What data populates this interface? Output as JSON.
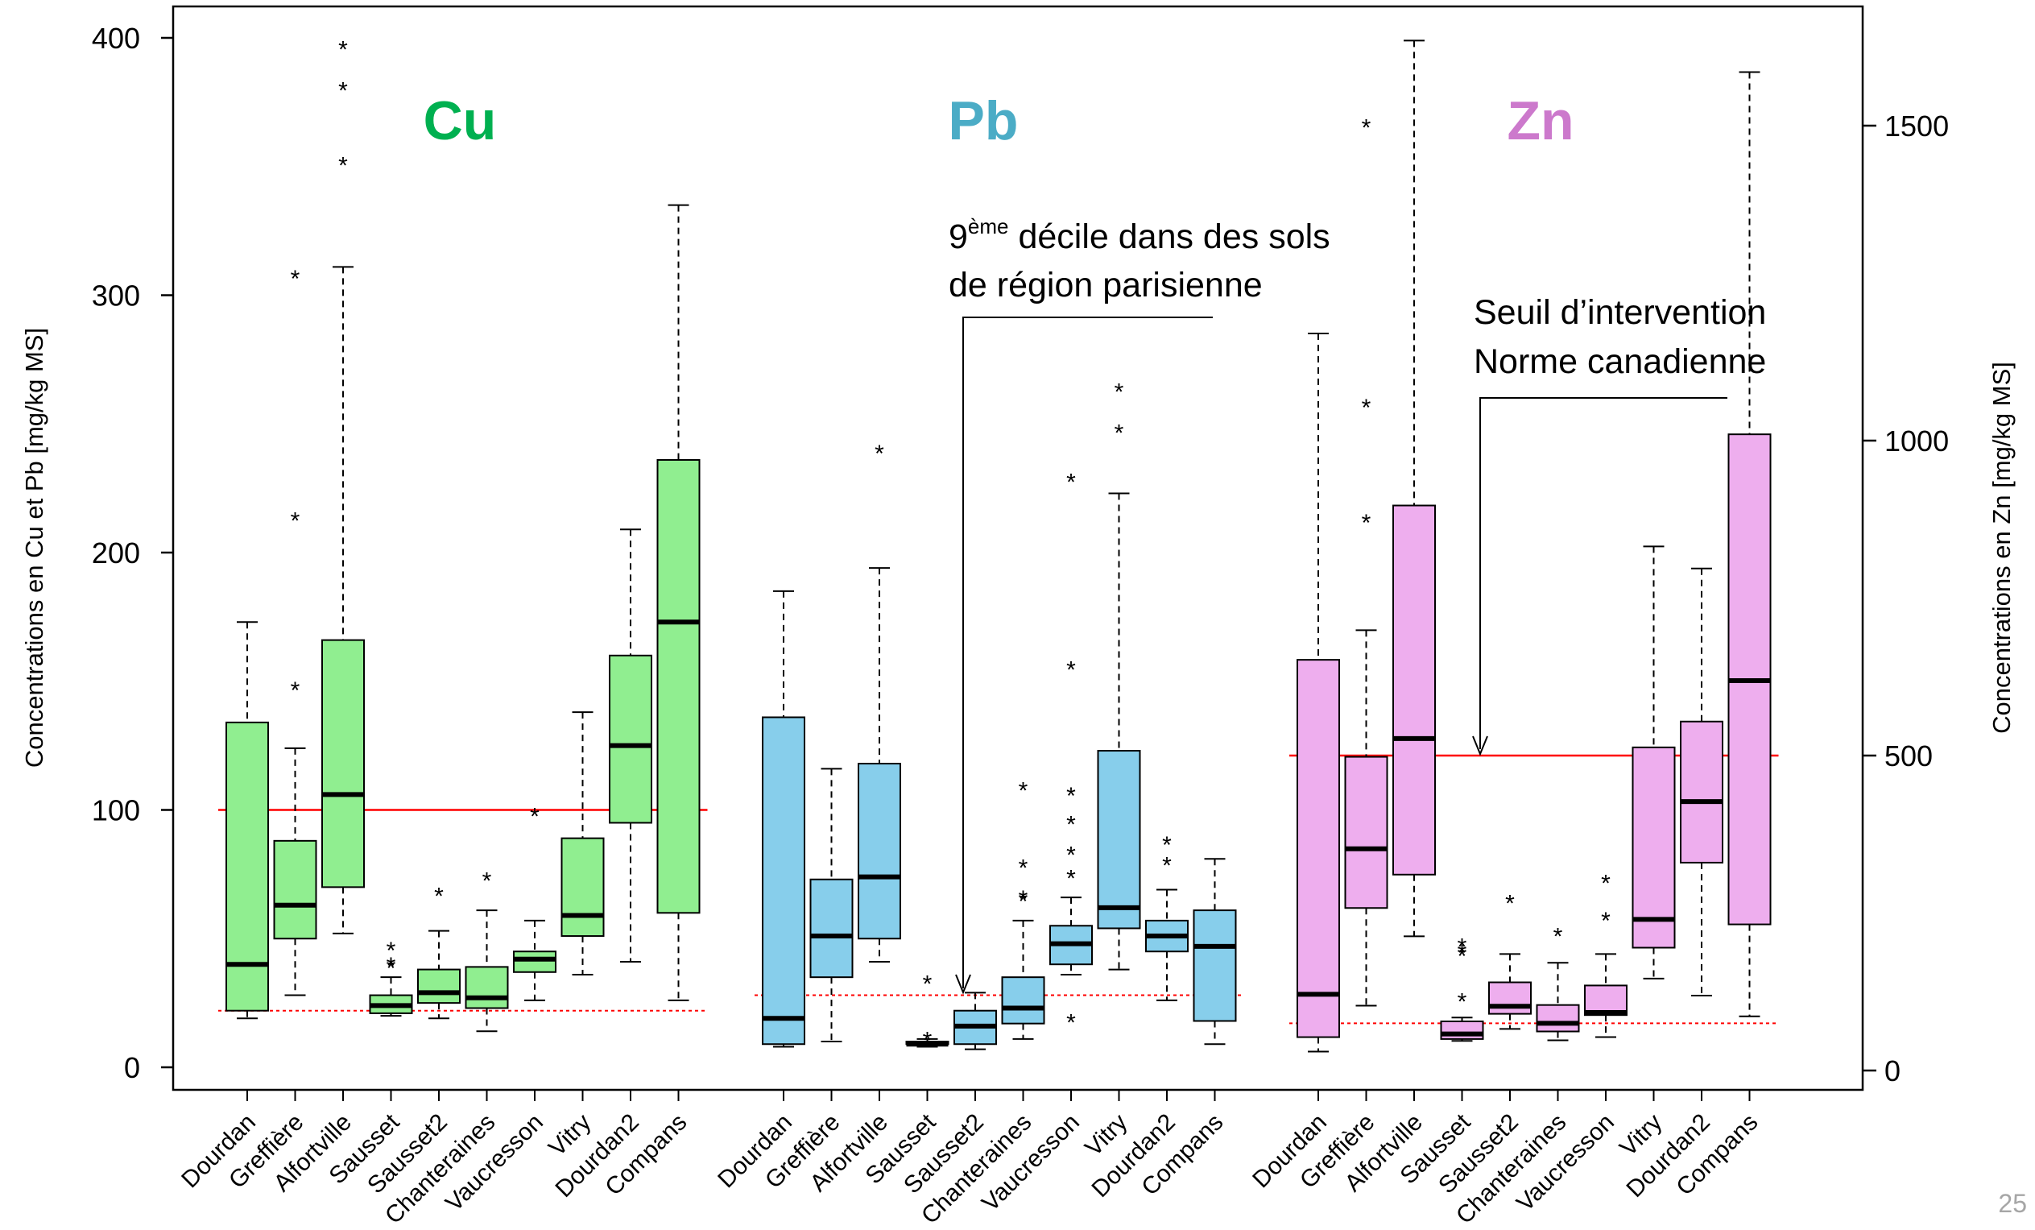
{
  "page_number": "25",
  "colors": {
    "cu_fill": "#90EE90",
    "pb_fill": "#87CEEB",
    "zn_fill": "#EEAEEE",
    "cu_title": "#00B050",
    "pb_title": "#4BACC6",
    "zn_title": "#CC79CC",
    "threshold": "#FF0000"
  },
  "chart_data": {
    "type": "boxplot",
    "ylabel_left": "Concentrations en Cu et Pb [mg/kg MS]",
    "ylabel_right": "Concentrations en Zn [mg/kg MS]",
    "y_left_range": [
      0,
      400
    ],
    "y_left_ticks": [
      "0",
      "100",
      "200",
      "300",
      "400"
    ],
    "y_right_range": [
      0,
      1650
    ],
    "y_right_ticks": [
      "0",
      "500",
      "1000",
      "1500"
    ],
    "annotations": [
      {
        "id": "decile",
        "line1_sup": "ème",
        "line1_prefix": "9",
        "line1": " décile dans des sols",
        "line2": "de région parisienne"
      },
      {
        "id": "seuil",
        "line1": "Seuil d’intervention",
        "line2": "Norme canadienne"
      }
    ],
    "groups": [
      {
        "label": "Cu",
        "axis": "left",
        "threshold_solid": 100,
        "threshold_dotted": 22,
        "boxes": [
          {
            "site": "Dourdan",
            "min": 19,
            "q1": 22,
            "median": 40,
            "q3": 134,
            "max": 173,
            "outliers": []
          },
          {
            "site": "Greffière",
            "min": 28,
            "q1": 50,
            "median": 63,
            "q3": 88,
            "max": 124,
            "outliers": [
              148,
              214,
              308
            ]
          },
          {
            "site": "Alfortville",
            "min": 52,
            "q1": 70,
            "median": 106,
            "q3": 166,
            "max": 311,
            "outliers": [
              352,
              381,
              397
            ]
          },
          {
            "site": "Sausset",
            "min": 20,
            "q1": 21,
            "median": 24,
            "q3": 28,
            "max": 35,
            "outliers": [
              40,
              41,
              47
            ]
          },
          {
            "site": "Sausset2",
            "min": 19,
            "q1": 25,
            "median": 29,
            "q3": 38,
            "max": 53,
            "outliers": [
              68
            ]
          },
          {
            "site": "Chanteraines",
            "min": 14,
            "q1": 23,
            "median": 27,
            "q3": 39,
            "max": 61,
            "outliers": [
              74
            ]
          },
          {
            "site": "Vaucresson",
            "min": 26,
            "q1": 37,
            "median": 42,
            "q3": 45,
            "max": 57,
            "outliers": [
              99
            ]
          },
          {
            "site": "Vitry",
            "min": 36,
            "q1": 51,
            "median": 59,
            "q3": 89,
            "max": 138,
            "outliers": []
          },
          {
            "site": "Dourdan2",
            "min": 41,
            "q1": 95,
            "median": 125,
            "q3": 160,
            "max": 209,
            "outliers": []
          },
          {
            "site": "Compans",
            "min": 26,
            "q1": 60,
            "median": 173,
            "q3": 236,
            "max": 335,
            "outliers": []
          }
        ]
      },
      {
        "label": "Pb",
        "axis": "left",
        "threshold_dotted": 28,
        "boxes": [
          {
            "site": "Dourdan",
            "min": 8,
            "q1": 9,
            "median": 19,
            "q3": 136,
            "max": 185,
            "outliers": []
          },
          {
            "site": "Greffière",
            "min": 10,
            "q1": 35,
            "median": 51,
            "q3": 73,
            "max": 116,
            "outliers": []
          },
          {
            "site": "Alfortville",
            "min": 41,
            "q1": 50,
            "median": 74,
            "q3": 118,
            "max": 194,
            "outliers": [
              240
            ]
          },
          {
            "site": "Sausset",
            "min": 8,
            "q1": 9,
            "median": 9,
            "q3": 10,
            "max": 11,
            "outliers": [
              12,
              34
            ]
          },
          {
            "site": "Sausset2",
            "min": 7,
            "q1": 9,
            "median": 16,
            "q3": 22,
            "max": 29,
            "outliers": []
          },
          {
            "site": "Chanteraines",
            "min": 11,
            "q1": 17,
            "median": 23,
            "q3": 35,
            "max": 57,
            "outliers": [
              66,
              67,
              79,
              109
            ]
          },
          {
            "site": "Vaucresson",
            "min": 36,
            "q1": 40,
            "median": 48,
            "q3": 55,
            "max": 66,
            "outliers": [
              19,
              75,
              84,
              96,
              107,
              156,
              229
            ]
          },
          {
            "site": "Vitry",
            "min": 38,
            "q1": 54,
            "median": 62,
            "q3": 123,
            "max": 223,
            "outliers": [
              248,
              264
            ]
          },
          {
            "site": "Dourdan2",
            "min": 26,
            "q1": 45,
            "median": 51,
            "q3": 57,
            "max": 69,
            "outliers": [
              80,
              88
            ]
          },
          {
            "site": "Compans",
            "min": 9,
            "q1": 18,
            "median": 47,
            "q3": 61,
            "max": 81,
            "outliers": []
          }
        ]
      },
      {
        "label": "Zn",
        "axis": "right",
        "threshold_solid": 500,
        "threshold_dotted": 75,
        "boxes": [
          {
            "site": "Dourdan",
            "min": 30,
            "q1": 53,
            "median": 121,
            "q3": 652,
            "max": 1170,
            "outliers": []
          },
          {
            "site": "Greffière",
            "min": 103,
            "q1": 258,
            "median": 352,
            "q3": 498,
            "max": 699,
            "outliers": [
              876,
              1059,
              1503
            ]
          },
          {
            "site": "Alfortville",
            "min": 213,
            "q1": 311,
            "median": 527,
            "q3": 897,
            "max": 1635,
            "outliers": []
          },
          {
            "site": "Sausset",
            "min": 47,
            "q1": 50,
            "median": 58,
            "q3": 78,
            "max": 84,
            "outliers": [
              116,
              188,
              193,
              203
            ]
          },
          {
            "site": "Sausset2",
            "min": 66,
            "q1": 90,
            "median": 102,
            "q3": 140,
            "max": 185,
            "outliers": [
              272
            ]
          },
          {
            "site": "Chanteraines",
            "min": 48,
            "q1": 62,
            "median": 75,
            "q3": 104,
            "max": 171,
            "outliers": [
              219
            ]
          },
          {
            "site": "Vaucresson",
            "min": 53,
            "q1": 88,
            "median": 92,
            "q3": 135,
            "max": 185,
            "outliers": [
              244,
              304
            ]
          },
          {
            "site": "Vitry",
            "min": 146,
            "q1": 195,
            "median": 240,
            "q3": 513,
            "max": 832,
            "outliers": []
          },
          {
            "site": "Dourdan2",
            "min": 119,
            "q1": 330,
            "median": 427,
            "q3": 554,
            "max": 797,
            "outliers": []
          },
          {
            "site": "Compans",
            "min": 86,
            "q1": 232,
            "median": 619,
            "q3": 1010,
            "max": 1585,
            "outliers": []
          }
        ]
      }
    ]
  }
}
